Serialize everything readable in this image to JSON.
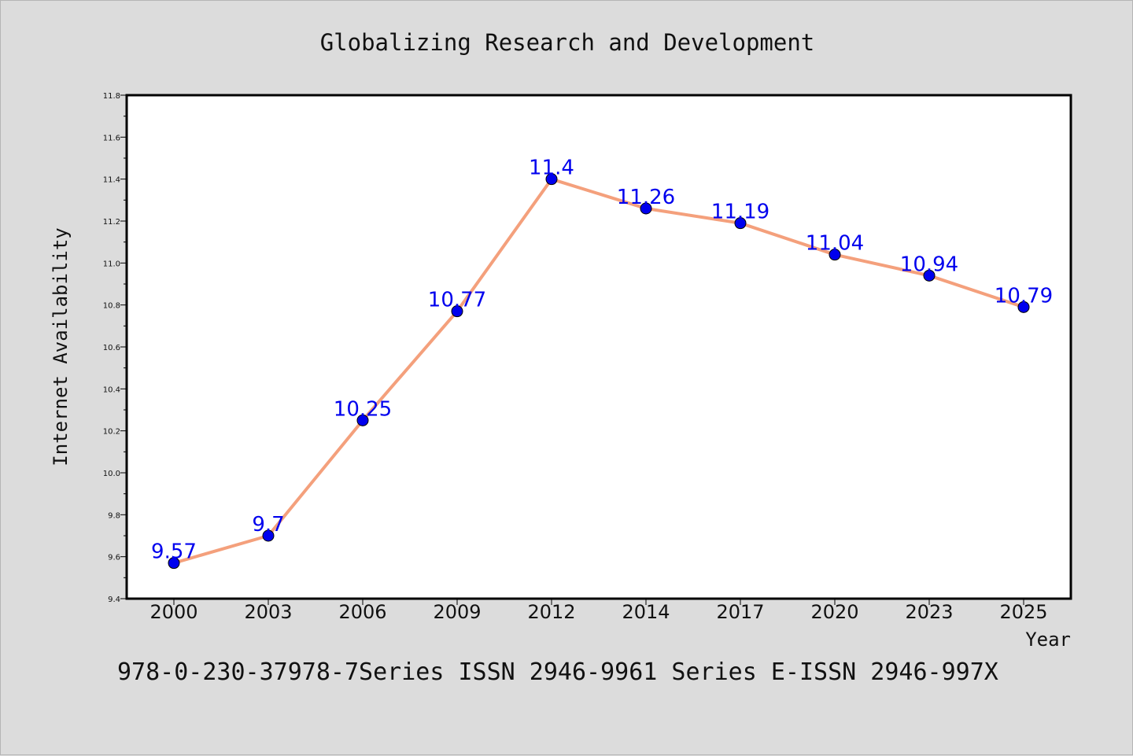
{
  "chart_data": {
    "type": "line",
    "title": "Globalizing Research and Development",
    "xlabel": "Year",
    "ylabel": "Internet Availability",
    "categories": [
      "2000",
      "2003",
      "2006",
      "2009",
      "2012",
      "2014",
      "2017",
      "2020",
      "2023",
      "2025"
    ],
    "series": [
      {
        "values": [
          9.57,
          9.7,
          10.25,
          10.77,
          11.4,
          11.26,
          11.19,
          11.04,
          10.94,
          10.79
        ],
        "data_labels": [
          "9.57",
          "9.7",
          "10.25",
          "10.77",
          "11.4",
          "11.26",
          "11.19",
          "11.04",
          "10.94",
          "10.79"
        ],
        "line_color": "#f4a07c",
        "marker_color": "#0000ee",
        "label_color": "#0000ee"
      }
    ],
    "ylim": [
      9.4,
      11.8
    ],
    "y_ticks": [
      "9.4",
      "9.6",
      "9.8",
      "10.0",
      "10.2",
      "10.4",
      "10.6",
      "10.8",
      "11.0",
      "11.2",
      "11.4",
      "11.6",
      "11.8"
    ],
    "grid": false,
    "legend": "none"
  },
  "footer": {
    "text": "978-0-230-37978-7Series ISSN 2946-9961 Series E-ISSN 2946-997X"
  },
  "colors": {
    "background": "#dcdcdc",
    "plot_area": "#ffffff",
    "line": "#f4a07c",
    "marker": "#0000ee"
  }
}
